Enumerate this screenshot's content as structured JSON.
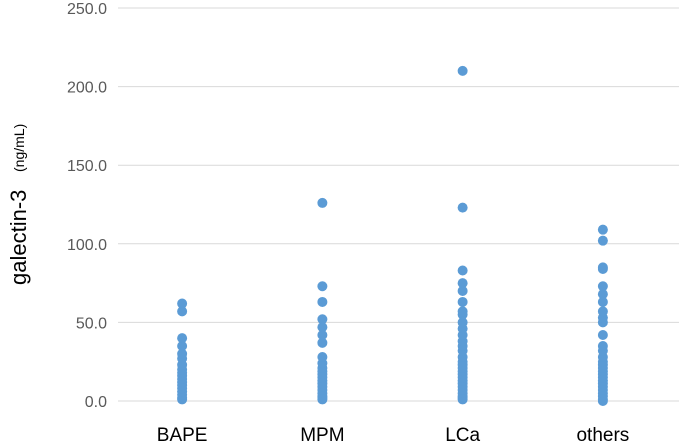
{
  "chart_data": {
    "type": "scatter",
    "ylabel": "galectin-3",
    "ylabel_unit": "(ng/mL)",
    "ylim": [
      0,
      250
    ],
    "yticks": [
      "0.0",
      "50.0",
      "100.0",
      "150.0",
      "200.0",
      "250.0"
    ],
    "grid": true,
    "categories": [
      "BAPE",
      "MPM",
      "LCa",
      "others"
    ],
    "marker_color": "#5B9BD5",
    "grid_color": "#D9D9D9",
    "series": [
      {
        "values": [
          1,
          2,
          4,
          6,
          8,
          10,
          12,
          14,
          16,
          18,
          20,
          23,
          27,
          30,
          35,
          40,
          57,
          62
        ]
      },
      {
        "values": [
          1,
          2,
          3,
          5,
          7,
          9,
          11,
          13,
          15,
          17,
          19,
          21,
          24,
          28,
          37,
          42,
          47,
          52,
          63,
          73,
          126
        ]
      },
      {
        "values": [
          1,
          2,
          3,
          5,
          7,
          9,
          11,
          13,
          15,
          17,
          19,
          21,
          23,
          25,
          28,
          32,
          35,
          38,
          42,
          46,
          50,
          55,
          57,
          63,
          70,
          75,
          83,
          123,
          210
        ]
      },
      {
        "values": [
          0,
          1,
          3,
          5,
          7,
          9,
          11,
          13,
          15,
          17,
          19,
          21,
          23,
          25,
          28,
          32,
          35,
          42,
          50,
          53,
          57,
          63,
          68,
          73,
          84,
          85,
          102,
          109
        ]
      }
    ]
  }
}
